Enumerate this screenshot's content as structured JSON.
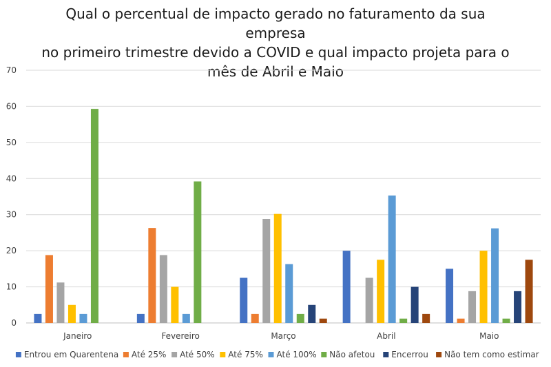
{
  "chart_data": {
    "type": "bar",
    "title_lines": [
      "Qual o percentual de impacto gerado no faturamento da sua empresa",
      "no primeiro trimestre devido a COVID e qual impacto projeta para o",
      "mês de Abril e Maio"
    ],
    "categories": [
      "Janeiro",
      "Fevereiro",
      "Março",
      "Abril",
      "Maio"
    ],
    "ylim": [
      0,
      70
    ],
    "yticks": [
      0,
      10,
      20,
      30,
      40,
      50,
      60,
      70
    ],
    "grid": true,
    "legend_position": "bottom",
    "series": [
      {
        "name": "Entrou em Quarentena",
        "color": "#4472C4",
        "values": [
          2.5,
          2.5,
          12.5,
          20,
          15
        ]
      },
      {
        "name": "Até 25%",
        "color": "#ED7D31",
        "values": [
          18.8,
          26.3,
          2.5,
          0,
          1.2
        ]
      },
      {
        "name": "Até 50%",
        "color": "#A5A5A5",
        "values": [
          11.2,
          18.8,
          28.8,
          12.5,
          8.8
        ]
      },
      {
        "name": "Até 75%",
        "color": "#FFC000",
        "values": [
          5,
          10,
          30.2,
          17.5,
          20
        ]
      },
      {
        "name": "Até 100%",
        "color": "#5B9BD5",
        "values": [
          2.5,
          2.5,
          16.3,
          35.3,
          26.2
        ]
      },
      {
        "name": "Não afetou",
        "color": "#70AD47",
        "values": [
          59.3,
          39.2,
          2.5,
          1.2,
          1.2
        ]
      },
      {
        "name": "Encerrou",
        "color": "#264478",
        "values": [
          0,
          0,
          5,
          10,
          8.8
        ]
      },
      {
        "name": "Não tem como estimar",
        "color": "#9E480E",
        "values": [
          0,
          0,
          1.2,
          2.5,
          17.5
        ]
      }
    ]
  }
}
